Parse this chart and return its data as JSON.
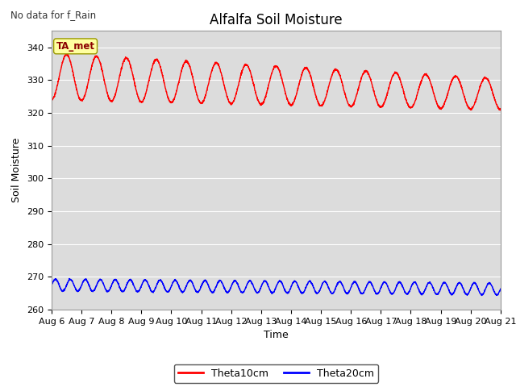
{
  "title": "Alfalfa Soil Moisture",
  "xlabel": "Time",
  "ylabel": "Soil Moisture",
  "top_left_text": "No data for f_Rain",
  "annotation_label": "TA_met",
  "ylim": [
    260,
    345
  ],
  "xlim_days": [
    0,
    15
  ],
  "xtick_labels": [
    "Aug 6",
    "Aug 7",
    "Aug 8",
    "Aug 9",
    "Aug 10",
    "Aug 11",
    "Aug 12",
    "Aug 13",
    "Aug 14",
    "Aug 15",
    "Aug 16",
    "Aug 17",
    "Aug 18",
    "Aug 19",
    "Aug 20",
    "Aug 21"
  ],
  "ytick_values": [
    260,
    270,
    280,
    290,
    300,
    310,
    320,
    330,
    340
  ],
  "theta10_color": "#ff0000",
  "theta20_color": "#0000ff",
  "background_color": "#dcdcdc",
  "legend_theta10": "Theta10cm",
  "legend_theta20": "Theta20cm",
  "annotation_bg": "#ffffa0",
  "annotation_text_color": "#8b0000",
  "title_fontsize": 12,
  "axis_label_fontsize": 9,
  "tick_fontsize": 8
}
